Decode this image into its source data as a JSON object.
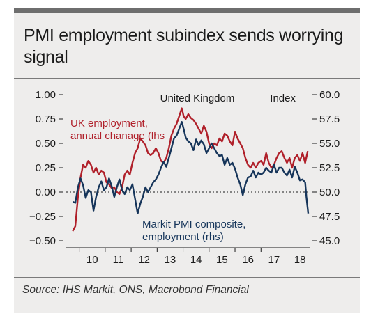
{
  "title": "PMI employment subindex sends worrying signal",
  "source": "Source: IHS Markit, ONS, Macrobond Financial",
  "chart_data": {
    "type": "line",
    "title": "United Kingdom",
    "left_axis": {
      "ticks": [
        "1.00",
        "0.75",
        "0.50",
        "0.25",
        "0.00",
        "-0.25",
        "-0.50"
      ],
      "range": [
        -0.5,
        1.0
      ]
    },
    "right_axis": {
      "label": "Index",
      "ticks": [
        "60.0",
        "57.5",
        "55.0",
        "52.5",
        "50.0",
        "47.5",
        "45.0"
      ],
      "range": [
        45.0,
        60.0
      ]
    },
    "x_ticks": [
      "10",
      "11",
      "12",
      "13",
      "14",
      "15",
      "16",
      "17",
      "18"
    ],
    "x_range": [
      2009.5,
      2018.9
    ],
    "colors": {
      "uk_employment": "#b0202a",
      "pmi_employment": "#16355a"
    },
    "series": [
      {
        "name": "UK employment, annual chanage (lhs)",
        "axis": "left",
        "color": "#b0202a",
        "points": [
          [
            2009.75,
            -0.4
          ],
          [
            2009.85,
            -0.35
          ],
          [
            2009.95,
            -0.05
          ],
          [
            2010.05,
            0.15
          ],
          [
            2010.15,
            0.28
          ],
          [
            2010.25,
            0.25
          ],
          [
            2010.35,
            0.32
          ],
          [
            2010.45,
            0.28
          ],
          [
            2010.55,
            0.2
          ],
          [
            2010.65,
            0.25
          ],
          [
            2010.75,
            0.18
          ],
          [
            2010.85,
            0.22
          ],
          [
            2010.95,
            0.2
          ],
          [
            2011.05,
            0.1
          ],
          [
            2011.15,
            0.08
          ],
          [
            2011.25,
            0.04
          ],
          [
            2011.35,
            0.05
          ],
          [
            2011.45,
            0.0
          ],
          [
            2011.55,
            -0.02
          ],
          [
            2011.65,
            0.05
          ],
          [
            2011.75,
            0.18
          ],
          [
            2011.85,
            0.22
          ],
          [
            2011.95,
            0.18
          ],
          [
            2012.05,
            0.3
          ],
          [
            2012.15,
            0.4
          ],
          [
            2012.25,
            0.45
          ],
          [
            2012.35,
            0.55
          ],
          [
            2012.45,
            0.52
          ],
          [
            2012.55,
            0.48
          ],
          [
            2012.65,
            0.4
          ],
          [
            2012.75,
            0.38
          ],
          [
            2012.85,
            0.4
          ],
          [
            2012.95,
            0.45
          ],
          [
            2013.05,
            0.4
          ],
          [
            2013.15,
            0.32
          ],
          [
            2013.25,
            0.3
          ],
          [
            2013.35,
            0.35
          ],
          [
            2013.45,
            0.45
          ],
          [
            2013.55,
            0.58
          ],
          [
            2013.65,
            0.65
          ],
          [
            2013.75,
            0.7
          ],
          [
            2013.85,
            0.78
          ],
          [
            2013.95,
            0.86
          ],
          [
            2014.02,
            0.78
          ],
          [
            2014.1,
            0.75
          ],
          [
            2014.2,
            0.8
          ],
          [
            2014.3,
            0.76
          ],
          [
            2014.4,
            0.74
          ],
          [
            2014.5,
            0.7
          ],
          [
            2014.6,
            0.65
          ],
          [
            2014.7,
            0.6
          ],
          [
            2014.8,
            0.68
          ],
          [
            2014.9,
            0.62
          ],
          [
            2015.0,
            0.5
          ],
          [
            2015.1,
            0.45
          ],
          [
            2015.2,
            0.5
          ],
          [
            2015.3,
            0.48
          ],
          [
            2015.4,
            0.55
          ],
          [
            2015.5,
            0.52
          ],
          [
            2015.6,
            0.6
          ],
          [
            2015.7,
            0.58
          ],
          [
            2015.8,
            0.52
          ],
          [
            2015.9,
            0.48
          ],
          [
            2016.0,
            0.62
          ],
          [
            2016.1,
            0.55
          ],
          [
            2016.2,
            0.5
          ],
          [
            2016.3,
            0.45
          ],
          [
            2016.4,
            0.35
          ],
          [
            2016.5,
            0.28
          ],
          [
            2016.6,
            0.25
          ],
          [
            2016.7,
            0.3
          ],
          [
            2016.8,
            0.25
          ],
          [
            2016.9,
            0.3
          ],
          [
            2017.0,
            0.32
          ],
          [
            2017.1,
            0.28
          ],
          [
            2017.2,
            0.4
          ],
          [
            2017.3,
            0.3
          ],
          [
            2017.4,
            0.25
          ],
          [
            2017.5,
            0.28
          ],
          [
            2017.6,
            0.35
          ],
          [
            2017.7,
            0.4
          ],
          [
            2017.8,
            0.42
          ],
          [
            2017.9,
            0.35
          ],
          [
            2018.0,
            0.3
          ],
          [
            2018.1,
            0.35
          ],
          [
            2018.2,
            0.25
          ],
          [
            2018.3,
            0.35
          ],
          [
            2018.4,
            0.38
          ],
          [
            2018.5,
            0.32
          ],
          [
            2018.6,
            0.4
          ],
          [
            2018.7,
            0.3
          ],
          [
            2018.8,
            0.42
          ]
        ]
      },
      {
        "name": "Markit PMI composite, employment (rhs)",
        "axis": "right",
        "color": "#16355a",
        "points": [
          [
            2009.75,
            49.0
          ],
          [
            2009.85,
            48.9
          ],
          [
            2009.95,
            50.5
          ],
          [
            2010.05,
            51.4
          ],
          [
            2010.15,
            50.7
          ],
          [
            2010.25,
            49.4
          ],
          [
            2010.35,
            50.2
          ],
          [
            2010.45,
            50.0
          ],
          [
            2010.55,
            48.1
          ],
          [
            2010.65,
            49.5
          ],
          [
            2010.75,
            50.5
          ],
          [
            2010.85,
            51.1
          ],
          [
            2010.95,
            50.2
          ],
          [
            2011.05,
            50.5
          ],
          [
            2011.15,
            51.4
          ],
          [
            2011.25,
            50.6
          ],
          [
            2011.35,
            49.5
          ],
          [
            2011.45,
            50.5
          ],
          [
            2011.55,
            51.3
          ],
          [
            2011.65,
            50.2
          ],
          [
            2011.75,
            49.8
          ],
          [
            2011.85,
            50.5
          ],
          [
            2011.95,
            50.2
          ],
          [
            2012.05,
            50.8
          ],
          [
            2012.15,
            49.3
          ],
          [
            2012.25,
            47.8
          ],
          [
            2012.35,
            48.8
          ],
          [
            2012.45,
            49.5
          ],
          [
            2012.55,
            50.5
          ],
          [
            2012.65,
            50.0
          ],
          [
            2012.75,
            50.5
          ],
          [
            2012.85,
            51.0
          ],
          [
            2012.95,
            51.3
          ],
          [
            2013.05,
            51.8
          ],
          [
            2013.15,
            52.5
          ],
          [
            2013.25,
            53.1
          ],
          [
            2013.35,
            52.6
          ],
          [
            2013.45,
            53.5
          ],
          [
            2013.55,
            54.5
          ],
          [
            2013.65,
            55.5
          ],
          [
            2013.75,
            55.8
          ],
          [
            2013.85,
            56.5
          ],
          [
            2013.95,
            57.2
          ],
          [
            2014.02,
            56.5
          ],
          [
            2014.1,
            55.6
          ],
          [
            2014.2,
            55.2
          ],
          [
            2014.3,
            55.0
          ],
          [
            2014.4,
            54.3
          ],
          [
            2014.5,
            55.4
          ],
          [
            2014.6,
            54.8
          ],
          [
            2014.7,
            55.3
          ],
          [
            2014.8,
            54.9
          ],
          [
            2014.9,
            54.0
          ],
          [
            2015.0,
            54.5
          ],
          [
            2015.1,
            55.0
          ],
          [
            2015.2,
            54.5
          ],
          [
            2015.3,
            54.0
          ],
          [
            2015.4,
            53.7
          ],
          [
            2015.5,
            53.8
          ],
          [
            2015.6,
            52.8
          ],
          [
            2015.7,
            53.5
          ],
          [
            2015.8,
            52.8
          ],
          [
            2015.9,
            53.0
          ],
          [
            2016.0,
            52.4
          ],
          [
            2016.1,
            51.5
          ],
          [
            2016.2,
            50.8
          ],
          [
            2016.3,
            49.7
          ],
          [
            2016.4,
            50.8
          ],
          [
            2016.5,
            51.5
          ],
          [
            2016.6,
            51.6
          ],
          [
            2016.7,
            52.2
          ],
          [
            2016.8,
            51.5
          ],
          [
            2016.9,
            52.0
          ],
          [
            2017.0,
            51.8
          ],
          [
            2017.1,
            52.0
          ],
          [
            2017.2,
            52.5
          ],
          [
            2017.3,
            52.2
          ],
          [
            2017.4,
            52.0
          ],
          [
            2017.5,
            52.8
          ],
          [
            2017.6,
            52.0
          ],
          [
            2017.7,
            52.5
          ],
          [
            2017.8,
            52.5
          ],
          [
            2017.9,
            52.0
          ],
          [
            2018.0,
            51.7
          ],
          [
            2018.1,
            52.3
          ],
          [
            2018.2,
            51.5
          ],
          [
            2018.3,
            52.6
          ],
          [
            2018.4,
            52.0
          ],
          [
            2018.5,
            51.2
          ],
          [
            2018.6,
            51.3
          ],
          [
            2018.7,
            51.0
          ],
          [
            2018.75,
            49.5
          ],
          [
            2018.82,
            47.8
          ]
        ]
      }
    ],
    "annotations": {
      "uk_employment": [
        "UK employment,",
        "annual chanage (lhs"
      ],
      "pmi_employment": [
        "Markit PMI composite,",
        "employment (rhs)"
      ]
    }
  }
}
